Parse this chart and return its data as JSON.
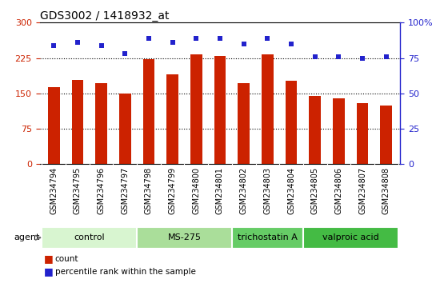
{
  "title": "GDS3002 / 1418932_at",
  "samples": [
    "GSM234794",
    "GSM234795",
    "GSM234796",
    "GSM234797",
    "GSM234798",
    "GSM234799",
    "GSM234800",
    "GSM234801",
    "GSM234802",
    "GSM234803",
    "GSM234804",
    "GSM234805",
    "GSM234806",
    "GSM234807",
    "GSM234808"
  ],
  "counts": [
    163,
    178,
    172,
    150,
    223,
    190,
    232,
    229,
    172,
    232,
    176,
    144,
    140,
    130,
    125
  ],
  "percentiles": [
    84,
    86,
    84,
    78,
    89,
    86,
    89,
    89,
    85,
    89,
    85,
    76,
    76,
    75,
    76
  ],
  "bar_color": "#cc2200",
  "dot_color": "#2222cc",
  "left_ylim": [
    0,
    300
  ],
  "right_ylim": [
    0,
    100
  ],
  "left_yticks": [
    0,
    75,
    150,
    225,
    300
  ],
  "right_yticks": [
    0,
    25,
    50,
    75,
    100
  ],
  "groups": [
    {
      "label": "control",
      "start": 0,
      "end": 4,
      "color": "#d8f5d0"
    },
    {
      "label": "MS-275",
      "start": 4,
      "end": 8,
      "color": "#aade9a"
    },
    {
      "label": "trichostatin A",
      "start": 8,
      "end": 11,
      "color": "#66cc66"
    },
    {
      "label": "valproic acid",
      "start": 11,
      "end": 15,
      "color": "#44bb44"
    }
  ],
  "tick_label_color_left": "#cc2200",
  "tick_label_color_right": "#2222cc",
  "grid_color": "black",
  "grid_linestyle": ":",
  "grid_linewidth": 0.8,
  "grid_levels": [
    75,
    150,
    225
  ],
  "bar_width": 0.5,
  "dot_size": 25,
  "title_fontsize": 10,
  "tick_fontsize": 7,
  "group_fontsize": 8,
  "legend_fontsize": 7.5,
  "agent_fontsize": 8
}
